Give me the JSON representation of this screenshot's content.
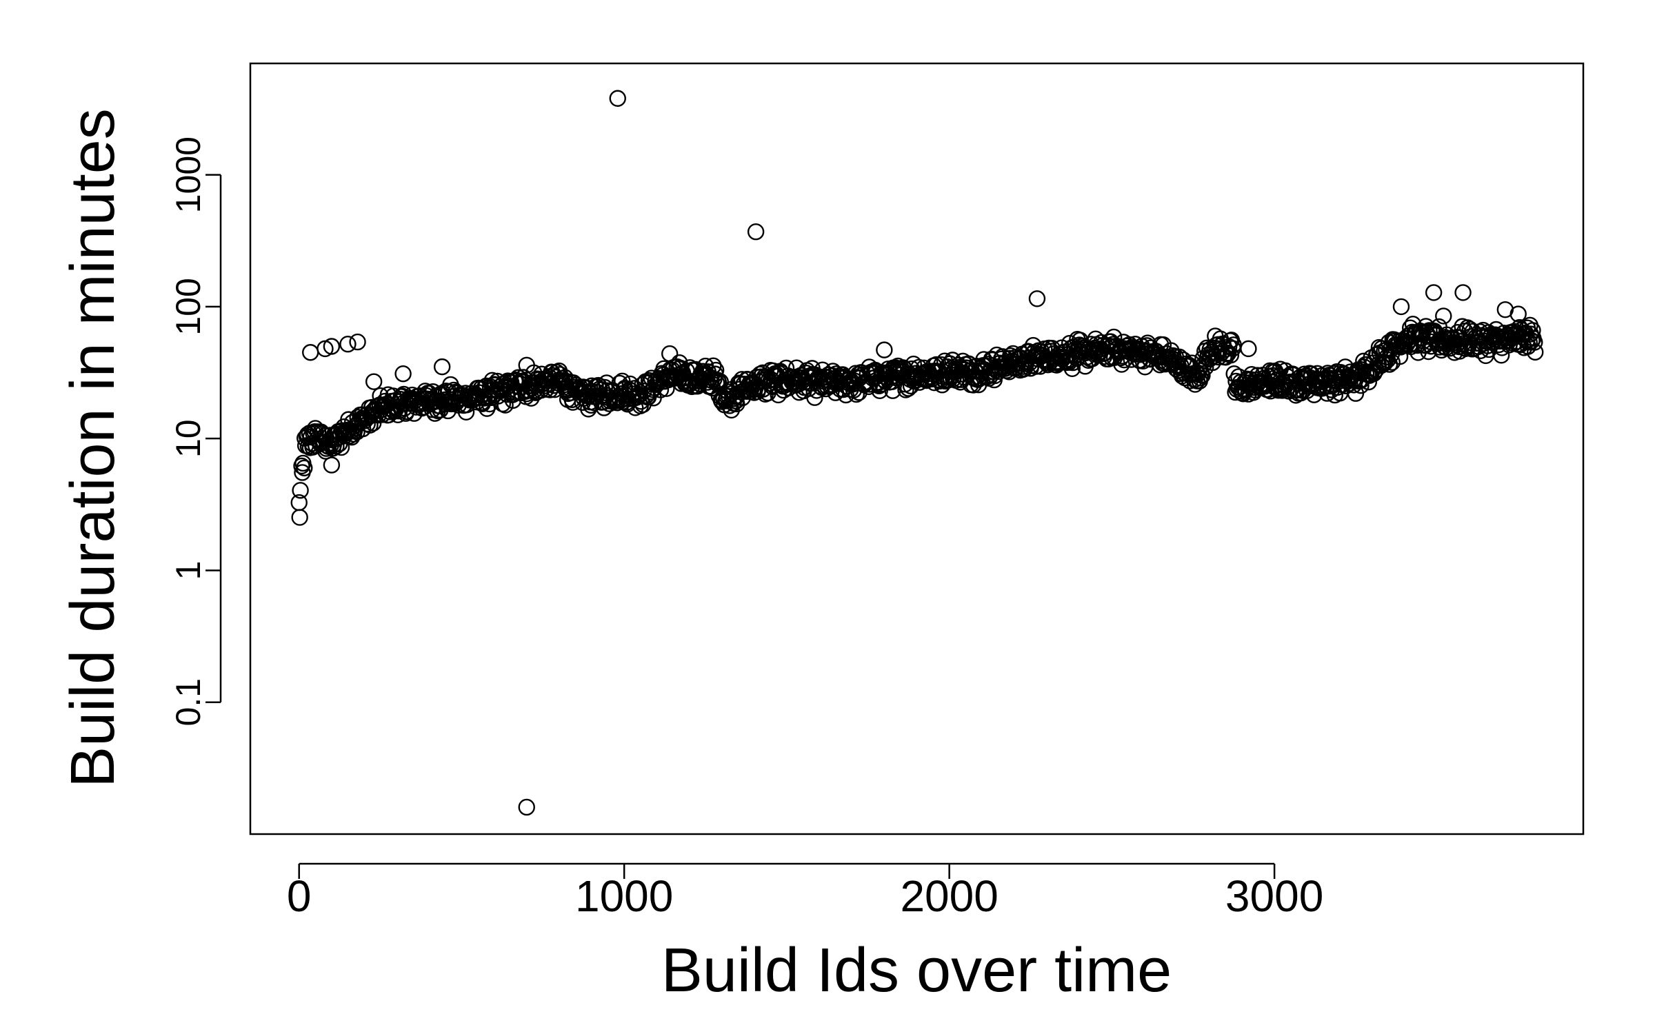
{
  "chart_data": {
    "type": "scatter",
    "title": "",
    "xlabel": "Build Ids over time",
    "ylabel": "Build duration in minutes",
    "y_scale": "log",
    "xlim": [
      -150,
      3950
    ],
    "ylim": [
      0.01,
      7000
    ],
    "x_ticks": [
      {
        "value": 0,
        "label": "0"
      },
      {
        "value": 1000,
        "label": "1000"
      },
      {
        "value": 2000,
        "label": "2000"
      },
      {
        "value": 3000,
        "label": "3000"
      }
    ],
    "y_ticks": [
      {
        "value": 0.1,
        "label": "0.1"
      },
      {
        "value": 1,
        "label": "1"
      },
      {
        "value": 10,
        "label": "10"
      },
      {
        "value": 100,
        "label": "100"
      },
      {
        "value": 1000,
        "label": "1000"
      }
    ],
    "grid": false,
    "marker": "open-circle",
    "trend": [
      [
        0,
        3
      ],
      [
        15,
        7
      ],
      [
        30,
        10
      ],
      [
        60,
        10
      ],
      [
        100,
        9
      ],
      [
        150,
        12
      ],
      [
        200,
        14
      ],
      [
        260,
        17
      ],
      [
        320,
        18
      ],
      [
        400,
        20
      ],
      [
        500,
        20
      ],
      [
        600,
        22
      ],
      [
        700,
        25
      ],
      [
        800,
        28
      ],
      [
        860,
        21
      ],
      [
        950,
        22
      ],
      [
        1050,
        22
      ],
      [
        1140,
        30
      ],
      [
        1280,
        28
      ],
      [
        1310,
        20
      ],
      [
        1400,
        26
      ],
      [
        1500,
        28
      ],
      [
        1600,
        26
      ],
      [
        1700,
        27
      ],
      [
        1800,
        29
      ],
      [
        1900,
        31
      ],
      [
        2000,
        32
      ],
      [
        2100,
        33
      ],
      [
        2200,
        38
      ],
      [
        2300,
        42
      ],
      [
        2400,
        44
      ],
      [
        2500,
        47
      ],
      [
        2600,
        45
      ],
      [
        2700,
        38
      ],
      [
        2760,
        28
      ],
      [
        2800,
        47
      ],
      [
        2870,
        48
      ],
      [
        2880,
        24
      ],
      [
        2950,
        26
      ],
      [
        3100,
        27
      ],
      [
        3250,
        28
      ],
      [
        3320,
        40
      ],
      [
        3400,
        58
      ],
      [
        3550,
        55
      ],
      [
        3700,
        55
      ],
      [
        3800,
        58
      ]
    ],
    "outliers": [
      [
        980,
        3800
      ],
      [
        1405,
        370
      ],
      [
        2270,
        115
      ],
      [
        700,
        0.016
      ],
      [
        3390,
        100
      ],
      [
        3490,
        128
      ],
      [
        3580,
        128
      ],
      [
        35,
        45
      ],
      [
        80,
        48
      ],
      [
        100,
        50
      ],
      [
        150,
        52
      ],
      [
        180,
        54
      ],
      [
        230,
        27
      ],
      [
        320,
        31
      ],
      [
        440,
        35
      ],
      [
        700,
        36
      ],
      [
        1140,
        44
      ],
      [
        1800,
        47
      ],
      [
        2920,
        48
      ],
      [
        3000,
        32
      ],
      [
        100,
        6.3
      ],
      [
        3520,
        85
      ],
      [
        3710,
        95
      ],
      [
        3750,
        88
      ]
    ]
  }
}
